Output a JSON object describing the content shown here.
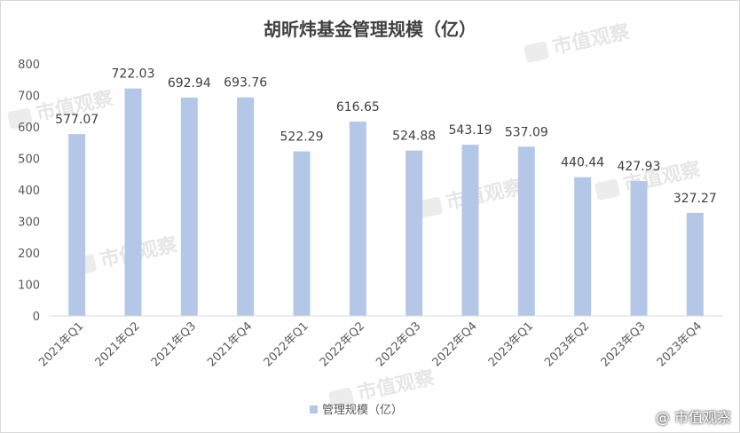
{
  "chart_data": {
    "type": "bar",
    "title": "胡昕炜基金管理规模（亿）",
    "categories": [
      "2021年Q1",
      "2021年Q2",
      "2021年Q3",
      "2021年Q4",
      "2022年Q1",
      "2022年Q2",
      "2022年Q3",
      "2022年Q4",
      "2023年Q1",
      "2023年Q2",
      "2023年Q3",
      "2023年Q4"
    ],
    "series": [
      {
        "name": "管理规模（亿）",
        "values": [
          577.07,
          722.03,
          692.94,
          693.76,
          522.29,
          616.65,
          524.88,
          543.19,
          537.09,
          440.44,
          427.93,
          327.27
        ],
        "labels": [
          "577.07",
          "722.03",
          "692.94",
          "693.76",
          "522.29",
          "616.65",
          "524.88",
          "543.19",
          "537.09",
          "440.44",
          "427.93",
          "327.27"
        ]
      }
    ],
    "yticks": [
      "0",
      "100",
      "200",
      "300",
      "400",
      "500",
      "600",
      "700",
      "800"
    ],
    "ylim": [
      0,
      800
    ],
    "grid": false,
    "legend": "bottom",
    "bar_color": "#b4c7e7"
  },
  "watermark": "市值观察",
  "credit": "@ 市值观察"
}
